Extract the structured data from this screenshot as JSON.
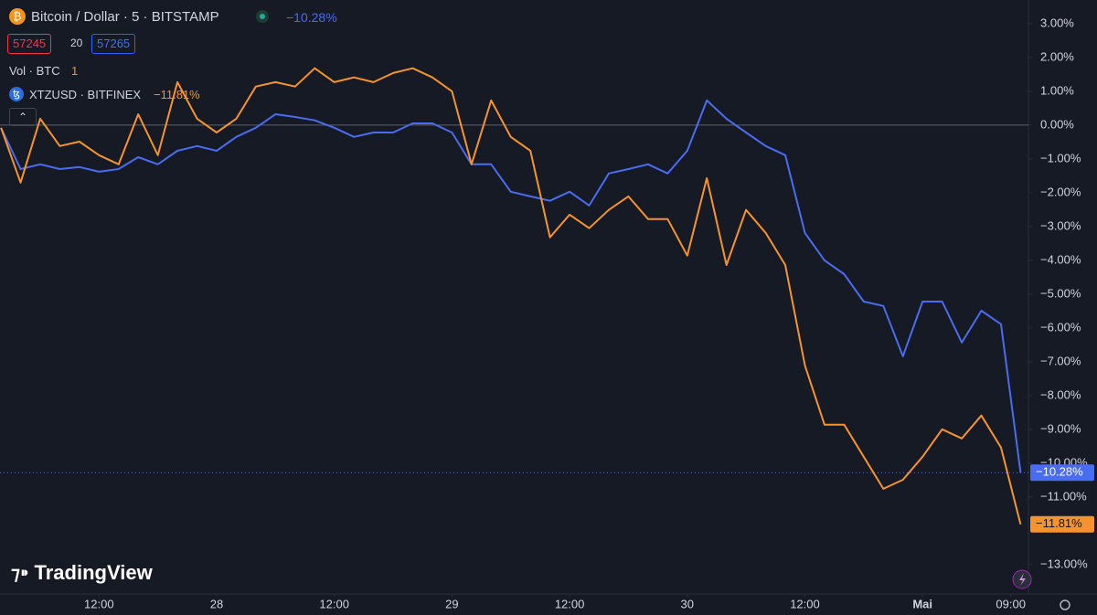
{
  "chart_data": {
    "type": "line",
    "title": "Bitcoin / Dollar · 5 · BITSTAMP",
    "price_boxes": [
      "57245",
      "20",
      "57265"
    ],
    "volume_label": "Vol · BTC",
    "volume_value": "1",
    "watermark": "TradingView",
    "x": [
      2,
      4,
      6,
      8,
      10,
      12,
      14,
      16,
      18,
      20,
      22,
      24,
      26,
      28,
      30,
      32,
      34,
      36,
      38,
      40,
      42,
      44,
      46,
      48,
      50,
      52,
      54,
      56,
      58,
      60,
      62,
      64,
      66,
      68,
      70,
      72,
      74,
      76,
      78,
      80,
      82,
      84,
      86,
      88,
      90,
      92,
      94,
      96,
      98,
      100,
      102,
      104,
      106
    ],
    "xlim": [
      1.9,
      106.8
    ],
    "xticks": [
      {
        "value": 12,
        "label": "12:00"
      },
      {
        "value": 24,
        "label": "28"
      },
      {
        "value": 36,
        "label": "12:00"
      },
      {
        "value": 48,
        "label": "29"
      },
      {
        "value": 60,
        "label": "12:00"
      },
      {
        "value": 72,
        "label": "30"
      },
      {
        "value": 84,
        "label": "12:00"
      },
      {
        "value": 96,
        "label": "Mai"
      },
      {
        "value": 105,
        "label": "09:00"
      }
    ],
    "ylim": [
      -13.87,
      3.7
    ],
    "yticks": [
      {
        "value": 3,
        "label": "3.00%"
      },
      {
        "value": 2,
        "label": "2.00%"
      },
      {
        "value": 1,
        "label": "1.00%"
      },
      {
        "value": 0,
        "label": "0.00%"
      },
      {
        "value": -1,
        "label": "−1.00%"
      },
      {
        "value": -2,
        "label": "−2.00%"
      },
      {
        "value": -3,
        "label": "−3.00%"
      },
      {
        "value": -4,
        "label": "−4.00%"
      },
      {
        "value": -5,
        "label": "−5.00%"
      },
      {
        "value": -6,
        "label": "−6.00%"
      },
      {
        "value": -7,
        "label": "−7.00%"
      },
      {
        "value": -8,
        "label": "−8.00%"
      },
      {
        "value": -9,
        "label": "−9.00%"
      },
      {
        "value": -10,
        "label": "−10.00%"
      },
      {
        "value": -11,
        "label": "−11.00%"
      },
      {
        "value": -13,
        "label": "−13.00%"
      }
    ],
    "grid": false,
    "series": [
      {
        "name": "Bitcoin / Dollar · 5 · BITSTAMP",
        "change_label": "−10.28%",
        "color": "#4a6cf0",
        "values": [
          -0.08,
          -1.3,
          -1.16,
          -1.3,
          -1.24,
          -1.38,
          -1.3,
          -0.95,
          -1.16,
          -0.76,
          -0.62,
          -0.76,
          -0.35,
          -0.08,
          0.32,
          0.24,
          0.14,
          -0.08,
          -0.35,
          -0.22,
          -0.22,
          0.05,
          0.05,
          -0.22,
          -1.16,
          -1.16,
          -1.97,
          -2.11,
          -2.24,
          -1.97,
          -2.38,
          -1.43,
          -1.3,
          -1.16,
          -1.43,
          -0.76,
          0.73,
          0.19,
          -0.22,
          -0.62,
          -0.89,
          -3.19,
          -4.0,
          -4.41,
          -5.22,
          -5.35,
          -6.84,
          -5.22,
          -5.22,
          -6.43,
          -5.49,
          -5.89,
          -10.28
        ]
      },
      {
        "name": "XTZUSD · BITFINEX",
        "change_label": "−11.81%",
        "color": "#f7932f",
        "values": [
          -0.08,
          -1.7,
          0.19,
          -0.62,
          -0.49,
          -0.89,
          -1.16,
          0.32,
          -0.89,
          1.27,
          0.19,
          -0.22,
          0.19,
          1.14,
          1.27,
          1.14,
          1.68,
          1.27,
          1.41,
          1.27,
          1.54,
          1.68,
          1.41,
          1.0,
          -1.16,
          0.73,
          -0.35,
          -0.76,
          -3.32,
          -2.65,
          -3.05,
          -2.51,
          -2.11,
          -2.78,
          -2.78,
          -3.86,
          -1.57,
          -4.14,
          -2.51,
          -3.19,
          -4.14,
          -7.11,
          -8.86,
          -8.86,
          -9.81,
          -10.76,
          -10.49,
          -9.81,
          -9.0,
          -9.27,
          -8.59,
          -9.54,
          -11.81
        ]
      }
    ]
  }
}
